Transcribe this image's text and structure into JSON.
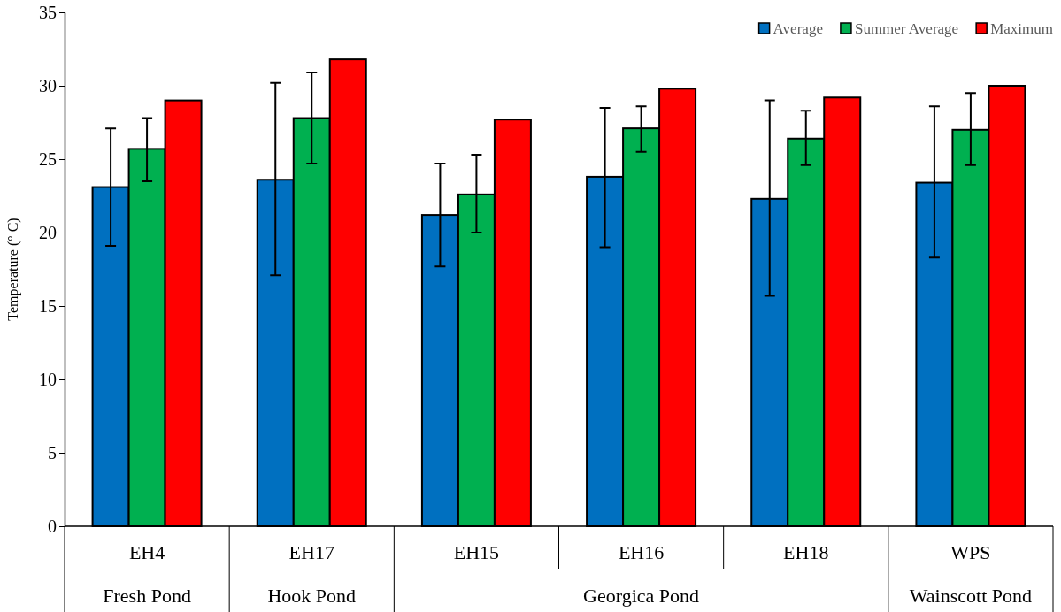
{
  "chart_data": {
    "type": "bar",
    "ylabel": "Temperature (° C)",
    "categories": [
      "EH4",
      "EH17",
      "EH15",
      "EH16",
      "EH18",
      "WPS"
    ],
    "series": [
      {
        "name": "Average",
        "color": "#0070c0",
        "values": [
          23.1,
          23.6,
          21.2,
          23.8,
          22.3,
          23.4
        ],
        "errors": [
          [
            19.1,
            27.1
          ],
          [
            17.1,
            30.2
          ],
          [
            17.7,
            24.7
          ],
          [
            19.0,
            28.5
          ],
          [
            15.7,
            29.0
          ],
          [
            18.3,
            28.6
          ]
        ]
      },
      {
        "name": "Summer Average",
        "color": "#00b050",
        "values": [
          25.7,
          27.8,
          22.6,
          27.1,
          26.4,
          27.0
        ],
        "errors": [
          [
            23.5,
            27.8
          ],
          [
            24.7,
            30.9
          ],
          [
            20.0,
            25.3
          ],
          [
            25.5,
            28.6
          ],
          [
            24.6,
            28.3
          ],
          [
            24.6,
            29.5
          ]
        ]
      },
      {
        "name": "Maximum",
        "color": "#ff0000",
        "values": [
          29.0,
          31.8,
          27.7,
          29.8,
          29.2,
          30.0
        ]
      }
    ],
    "annotations": [
      "Fresh Pond",
      "Hook Pond",
      "Georgica Pond",
      "Wainscott Pond"
    ],
    "ylim": [
      0,
      35
    ],
    "yticks": [
      0,
      5,
      10,
      15,
      20,
      25,
      30,
      35
    ],
    "grid": false,
    "legend": "top right"
  }
}
